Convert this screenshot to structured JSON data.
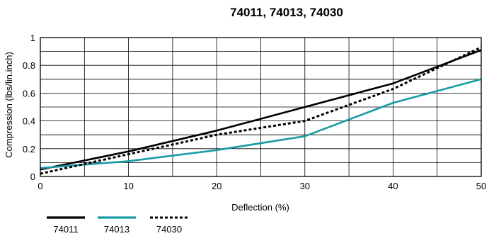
{
  "chart_data": {
    "type": "line",
    "title": "74011, 74013, 74030",
    "xlabel": "Deflection (%)",
    "ylabel": "Compression (lbs/lin.inch)",
    "xlim": [
      0,
      50
    ],
    "ylim": [
      0,
      1
    ],
    "x_ticks": [
      "0",
      "10",
      "20",
      "30",
      "40",
      "50"
    ],
    "y_ticks": [
      "0",
      "0.2",
      "0.4",
      "0.6",
      "0.8",
      "1"
    ],
    "grid": true,
    "legend_position": "bottom-left",
    "series": [
      {
        "name": "74011",
        "color": "#000000",
        "style": "solid",
        "x": [
          0,
          10,
          20,
          30,
          40,
          50
        ],
        "y": [
          0.05,
          0.18,
          0.33,
          0.5,
          0.67,
          0.91
        ]
      },
      {
        "name": "74013",
        "color": "#1a9aa6",
        "style": "solid",
        "x": [
          0,
          10,
          20,
          30,
          40,
          50
        ],
        "y": [
          0.06,
          0.11,
          0.19,
          0.29,
          0.53,
          0.7
        ]
      },
      {
        "name": "74030",
        "color": "#000000",
        "style": "dotted",
        "x": [
          0,
          10,
          20,
          30,
          40,
          50
        ],
        "y": [
          0.02,
          0.16,
          0.3,
          0.4,
          0.63,
          0.93
        ]
      }
    ]
  }
}
